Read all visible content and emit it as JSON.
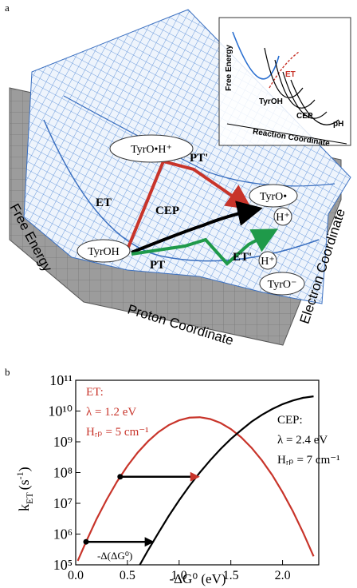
{
  "panel_a": {
    "label": "a",
    "states": {
      "tyroh": "TyrOH",
      "tyroh_plus": "TyrO•H⁺",
      "tyro_radical": "TyrO•",
      "proton_1": "H⁺",
      "proton_2": "H⁺",
      "tyro_anion": "TyrO⁻"
    },
    "steps": {
      "et": "ET",
      "pt_prime": "PT'",
      "cep": "CEP",
      "pt": "PT",
      "et_prime": "ET'"
    },
    "axes": {
      "z": "Free Energy",
      "x": "Proton Coordinate",
      "y": "Electron Coordinate"
    },
    "inset": {
      "y_label": "Free Energy",
      "x_label": "Reaction Coordinate",
      "reactant": "TyrOH",
      "et": "ET",
      "cep": "CEP",
      "ph": "pH"
    }
  },
  "chart_data": {
    "type": "line",
    "panel_label": "b",
    "x_label": "-ΔG⁰ (eV)",
    "y_label": {
      "symbol": "k",
      "subscript": "ET",
      "unit": "(s",
      "superscript": "-1",
      "close": ")"
    },
    "yscale": "log",
    "xlim": [
      0,
      2.35
    ],
    "ylim": [
      100000,
      100000000000
    ],
    "xticks": [
      {
        "value": 0,
        "label": "0.0"
      },
      0.5,
      {
        "value": 1,
        "label": "1.0"
      },
      1.5,
      {
        "value": 2,
        "label": "2.0"
      }
    ],
    "yticks": [
      {
        "value": 100000,
        "label": "10⁵"
      },
      {
        "value": 1000000,
        "label": "10⁶"
      },
      {
        "value": 10000000,
        "label": "10⁷"
      },
      {
        "value": 100000000,
        "label": "10⁸"
      },
      {
        "value": 1000000000,
        "label": "10⁹"
      },
      {
        "value": 10000000000,
        "label": "10¹⁰"
      },
      {
        "value": 100000000000,
        "label": "10¹¹"
      }
    ],
    "series": [
      {
        "name": "ET:",
        "lambda": "λ = 1.2 eV",
        "coupling": "Hᵣₚ = 5 cm⁻¹",
        "color": "#c8342a",
        "x": [
          0.02,
          0.1,
          0.2,
          0.3,
          0.4,
          0.5,
          0.6,
          0.7,
          0.8,
          0.9,
          1.0,
          1.1,
          1.2,
          1.3,
          1.4,
          1.5,
          1.6,
          1.7,
          1.8,
          1.9,
          2.0,
          2.1,
          2.2,
          2.3
        ],
        "values": [
          135000,
          560000,
          3000000,
          13300000,
          51000000,
          164000000,
          450000000,
          1040000000,
          2070000000,
          3500000000,
          5000000000,
          6100000000,
          6300000000,
          5500000000,
          4100000000,
          2600000000,
          1400000000,
          640000000,
          250000000,
          83000000,
          23000000,
          5500000,
          1100000,
          190000
        ]
      },
      {
        "name": "CEP:",
        "lambda": "λ = 2.4 eV",
        "coupling": "Hᵣₚ = 7 cm⁻¹",
        "color": "#000000",
        "x": [
          0.62,
          0.7,
          0.8,
          0.9,
          1.0,
          1.1,
          1.2,
          1.3,
          1.4,
          1.5,
          1.6,
          1.7,
          1.8,
          1.9,
          2.0,
          2.1,
          2.2,
          2.3
        ],
        "values": [
          100000,
          300000,
          1100000,
          3900000,
          12500000,
          37000000,
          100000000,
          250000000,
          580000000,
          1240000000,
          2400000000,
          4500000000,
          7500000000,
          11600000000,
          16700000000,
          22000000000,
          27000000000,
          30000000000
        ]
      }
    ],
    "arrows": [
      {
        "x": [
          0.43,
          1.2
        ],
        "y": 73000000,
        "head_color": "#c8342a"
      },
      {
        "x": [
          0.1,
          0.76
        ],
        "y": 560000,
        "label": "-Δ(ΔG⁰)"
      }
    ]
  }
}
